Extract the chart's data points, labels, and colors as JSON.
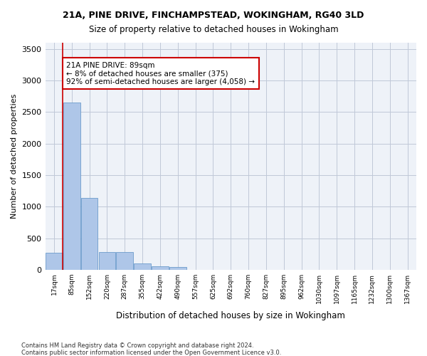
{
  "title1": "21A, PINE DRIVE, FINCHAMPSTEAD, WOKINGHAM, RG40 3LD",
  "title2": "Size of property relative to detached houses in Wokingham",
  "xlabel": "Distribution of detached houses by size in Wokingham",
  "ylabel": "Number of detached properties",
  "bar_values": [
    270,
    2650,
    1140,
    285,
    285,
    95,
    60,
    40,
    0,
    0,
    0,
    0,
    0,
    0,
    0,
    0,
    0,
    0,
    0,
    0,
    0
  ],
  "bar_labels": [
    "17sqm",
    "85sqm",
    "152sqm",
    "220sqm",
    "287sqm",
    "355sqm",
    "422sqm",
    "490sqm",
    "557sqm",
    "625sqm",
    "692sqm",
    "760sqm",
    "827sqm",
    "895sqm",
    "962sqm",
    "1030sqm",
    "1097sqm",
    "1165sqm",
    "1232sqm",
    "1300sqm",
    "1367sqm"
  ],
  "bar_color": "#aec6e8",
  "bar_edge_color": "#5a8fc4",
  "property_line_x": 1,
  "annotation_text": "21A PINE DRIVE: 89sqm\n← 8% of detached houses are smaller (375)\n92% of semi-detached houses are larger (4,058) →",
  "annotation_box_color": "#ffffff",
  "annotation_edge_color": "#cc0000",
  "ylim": [
    0,
    3600
  ],
  "yticks": [
    0,
    500,
    1000,
    1500,
    2000,
    2500,
    3000,
    3500
  ],
  "vline_color": "#cc0000",
  "background_color": "#eef2f8",
  "footer_line1": "Contains HM Land Registry data © Crown copyright and database right 2024.",
  "footer_line2": "Contains public sector information licensed under the Open Government Licence v3.0."
}
